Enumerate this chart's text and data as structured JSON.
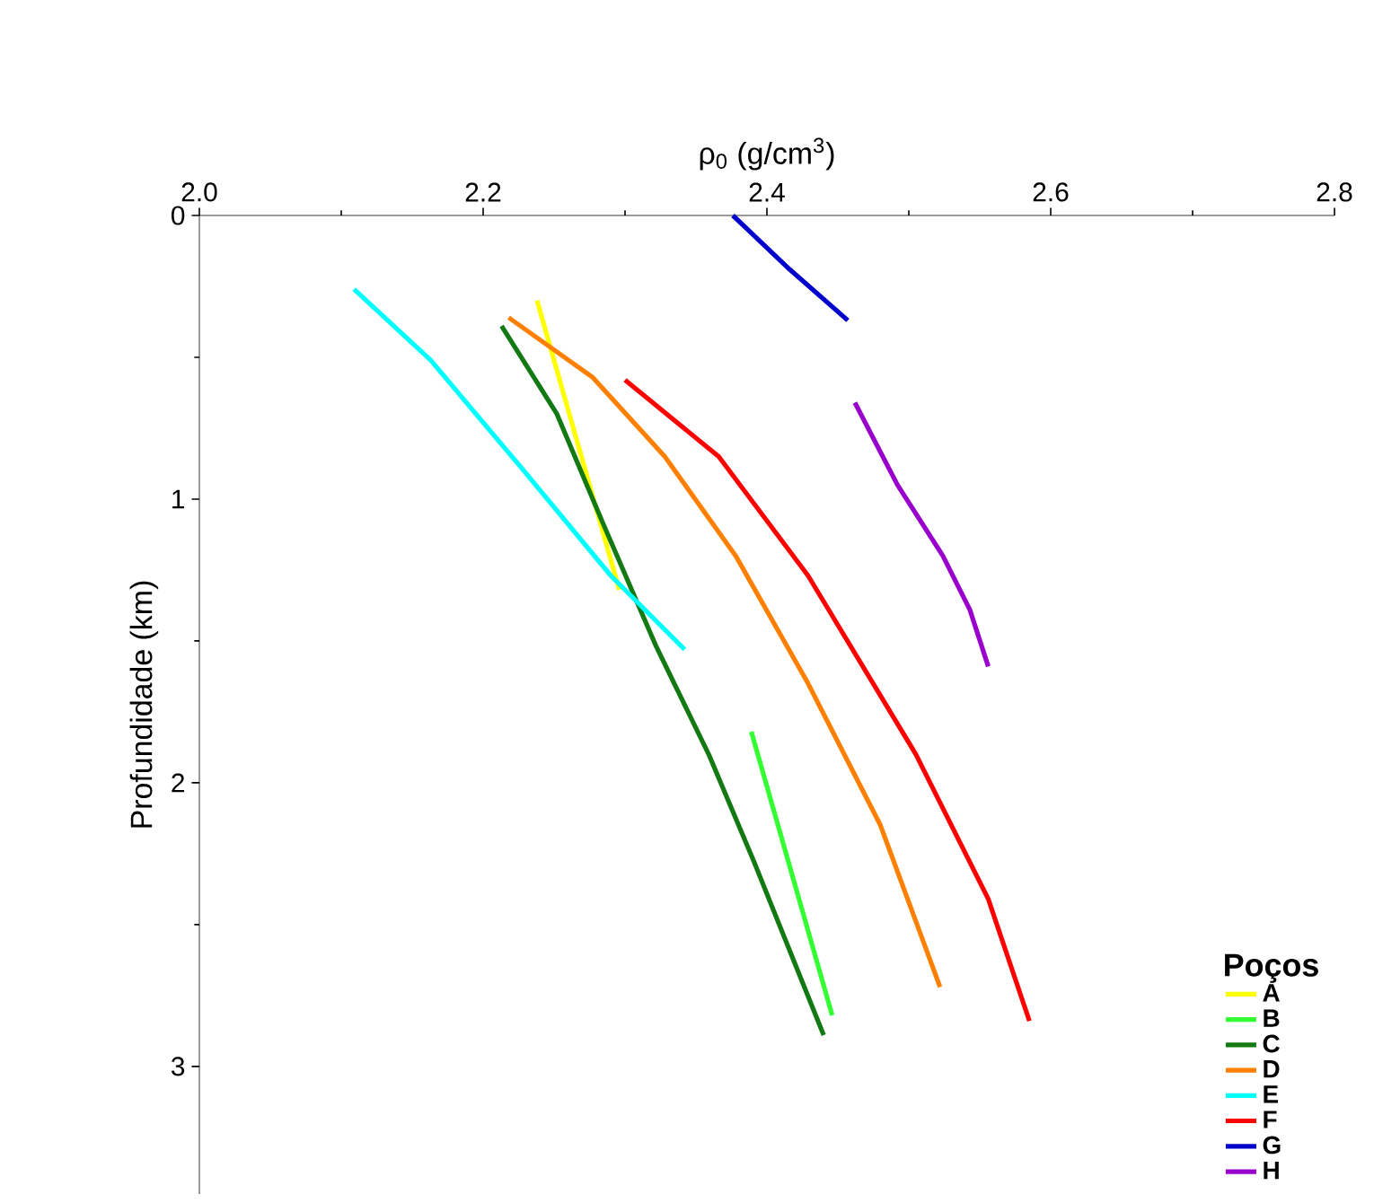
{
  "chart_data": {
    "type": "line",
    "xlabel": "ρ$_{0}$ (g/cm$^{3}$)",
    "ylabel": "Profundidade (km)",
    "legend_title": "Poços",
    "legend": "bottom right",
    "xlim": [
      2.0,
      2.8
    ],
    "xticks": [
      {
        "value": 2.0,
        "label": "2.0"
      },
      {
        "value": 2.2,
        "label": "2.2"
      },
      {
        "value": 2.4,
        "label": "2.4"
      },
      {
        "value": 2.6,
        "label": "2.6"
      },
      {
        "value": 2.8,
        "label": "2.8"
      }
    ],
    "ylim": [
      3.45,
      0
    ],
    "yticks": [
      0,
      1,
      2,
      3
    ],
    "grid": false,
    "marker": "none",
    "line_style": "solid",
    "series": [
      {
        "name": "A",
        "color": "#ffff00",
        "x": [
          2.238,
          2.296
        ],
        "values": [
          0.3,
          1.32
        ]
      },
      {
        "name": "B",
        "color": "#33ff33",
        "x": [
          2.389,
          2.446
        ],
        "values": [
          1.82,
          2.82
        ]
      },
      {
        "name": "C",
        "color": "#137a13",
        "x": [
          2.213,
          2.252,
          2.284,
          2.322,
          2.359,
          2.391,
          2.44
        ],
        "values": [
          0.39,
          0.7,
          1.08,
          1.52,
          1.9,
          2.28,
          2.89
        ]
      },
      {
        "name": "D",
        "color": "#ff8000",
        "x": [
          2.218,
          2.277,
          2.328,
          2.378,
          2.429,
          2.48,
          2.522
        ],
        "values": [
          0.36,
          0.57,
          0.85,
          1.2,
          1.65,
          2.15,
          2.72
        ]
      },
      {
        "name": "E",
        "color": "#00ffff",
        "x": [
          2.109,
          2.163,
          2.227,
          2.29,
          2.342
        ],
        "values": [
          0.26,
          0.51,
          0.89,
          1.27,
          1.53
        ]
      },
      {
        "name": "F",
        "color": "#ff0000",
        "x": [
          2.3,
          2.366,
          2.429,
          2.505,
          2.556,
          2.585
        ],
        "values": [
          0.58,
          0.85,
          1.27,
          1.9,
          2.41,
          2.84
        ]
      },
      {
        "name": "G",
        "color": "#0000cc",
        "x": [
          2.376,
          2.416,
          2.457
        ],
        "values": [
          0.0,
          0.19,
          0.37
        ]
      },
      {
        "name": "H",
        "color": "#9900cc",
        "x": [
          2.462,
          2.492,
          2.524,
          2.543,
          2.556
        ],
        "values": [
          0.66,
          0.95,
          1.2,
          1.39,
          1.59
        ]
      }
    ]
  }
}
